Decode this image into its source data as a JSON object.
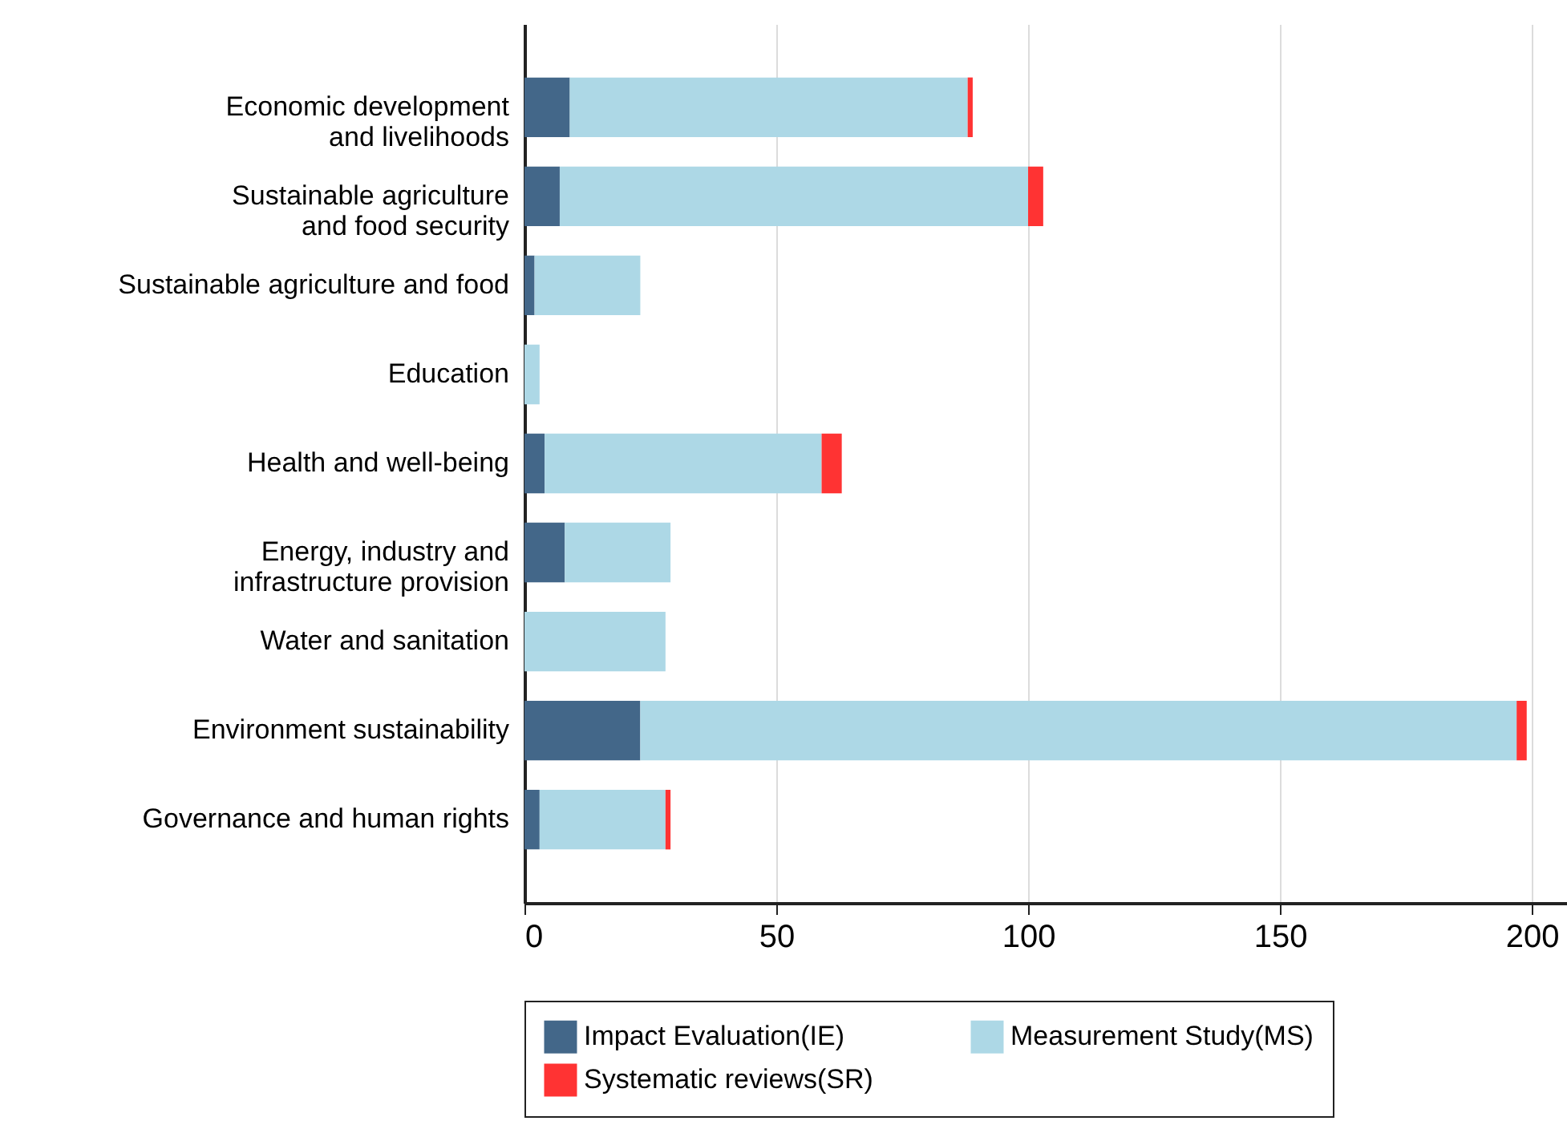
{
  "chart_data": {
    "type": "bar",
    "orientation": "horizontal",
    "stacked": true,
    "categories": [
      "Economic development\nand livelihoods",
      "Sustainable agriculture\nand food security",
      "Sustainable agriculture and food",
      "Education",
      "Health and well-being",
      "Energy, industry and\ninfrastructure provision",
      "Water and sanitation",
      "Environment sustainability",
      "Governance and human rights"
    ],
    "series": [
      {
        "name": "Impact Evaluation(IE)",
        "color": "#436789",
        "values": [
          9,
          7,
          2,
          0,
          4,
          8,
          0,
          23,
          3
        ]
      },
      {
        "name": "Measurement Study(MS)",
        "color": "#add8e6",
        "values": [
          79,
          93,
          21,
          3,
          55,
          21,
          28,
          174,
          25
        ]
      },
      {
        "name": "Systematic reviews(SR)",
        "color": "#ff3333",
        "values": [
          1,
          3,
          0,
          0,
          4,
          0,
          0,
          2,
          1
        ]
      }
    ],
    "xlim": [
      0,
      207
    ],
    "xticks": [
      0,
      50,
      100,
      150,
      200
    ],
    "grid": "x",
    "legend": "bottom"
  }
}
